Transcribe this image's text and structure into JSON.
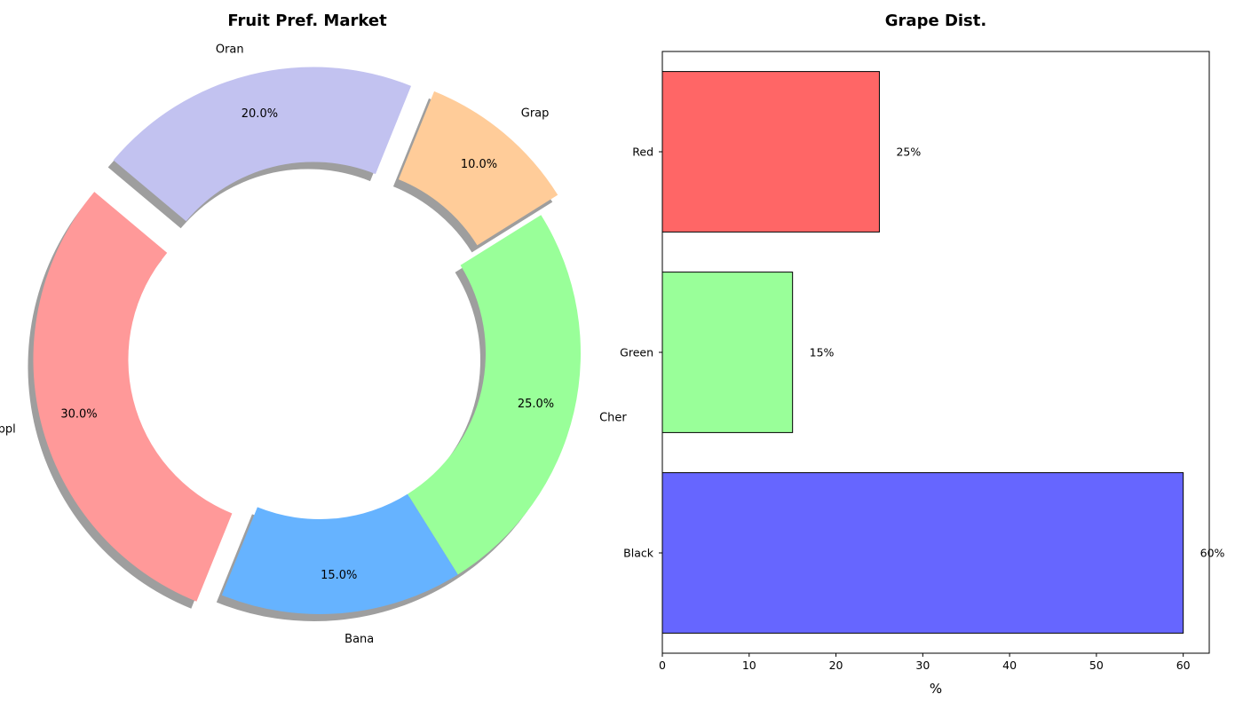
{
  "chart_data": [
    {
      "type": "pie",
      "title": "Fruit Pref. Market",
      "categories": [
        "Appl",
        "Bana",
        "Cher",
        "Grap",
        "Oran"
      ],
      "values": [
        30,
        15,
        25,
        10,
        20
      ],
      "pct_labels": [
        "30.0%",
        "15.0%",
        "25.0%",
        "10.0%",
        "20.0%"
      ],
      "colors": [
        "#ff9999",
        "#66b3ff",
        "#99ff99",
        "#ffcc99",
        "#c2c2f0"
      ],
      "exploded": [
        true,
        false,
        false,
        true,
        true
      ],
      "donut": true,
      "shadow": true,
      "start_angle": 140,
      "direction": "counterclockwise"
    },
    {
      "type": "bar",
      "orientation": "horizontal",
      "title": "Grape Dist.",
      "categories": [
        "Red",
        "Green",
        "Black"
      ],
      "values": [
        25,
        15,
        60
      ],
      "value_labels": [
        "25%",
        "15%",
        "60%"
      ],
      "colors": [
        "#ff6666",
        "#99ff99",
        "#6666ff"
      ],
      "xlabel": "%",
      "ylabel": "",
      "xlim": [
        0,
        63
      ],
      "xticks": [
        0,
        10,
        20,
        30,
        40,
        50,
        60
      ],
      "grid": false
    }
  ]
}
